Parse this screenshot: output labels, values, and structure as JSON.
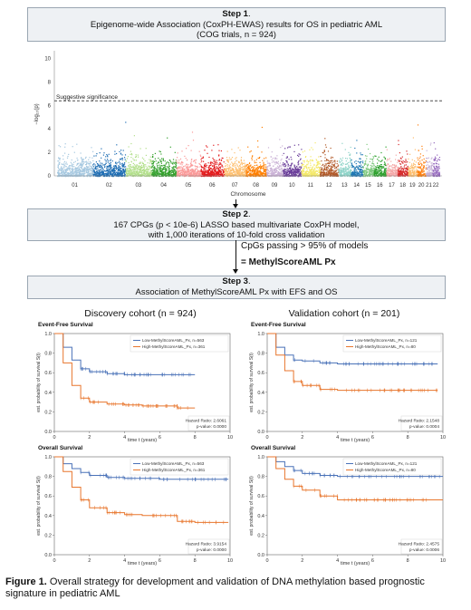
{
  "step1": {
    "label": "Step 1",
    "line1": "Epigenome-wide Association (CoxPH-EWAS) results for OS in pediatric AML",
    "line2": "(COG trials, n = 924)"
  },
  "manhattan": {
    "ylabel": "−log₁₀(p)",
    "xlabel": "Chromosome",
    "threshold_label": "Suggestive significance",
    "y_ticks": [
      "0",
      "2",
      "4",
      "6",
      "8",
      "10"
    ],
    "chromosomes": [
      "01",
      "02",
      "03",
      "04",
      "05",
      "06",
      "07",
      "08",
      "09",
      "10",
      "11",
      "12",
      "13",
      "14",
      "15",
      "16",
      "17",
      "18",
      "19",
      "20",
      "21",
      "22"
    ],
    "colors": [
      "#a6c8e0",
      "#1f6eb4",
      "#b2df8a",
      "#33a02c",
      "#fb9a99",
      "#e31a1c",
      "#fdbf6f",
      "#ff7f00",
      "#cab2d6",
      "#6a3d9a",
      "#f4e96a",
      "#b15928",
      "#8dd3c7",
      "#1f78b4",
      "#7fc97f",
      "#2ca02c",
      "#f4a6a6",
      "#d62728",
      "#fdbf6f",
      "#ff7f0e",
      "#c5b0d5",
      "#9467bd"
    ]
  },
  "step2": {
    "label": "Step 2",
    "line1": "167 CPGs (p < 10e-6) LASSO based multivariate CoxPH model,",
    "line2": "with 1,000 iterations of 10-fold cross validation"
  },
  "cpgs_passing": "CpGs passing > 95% of models",
  "score_name": "= MethylScoreAML Px",
  "step3": {
    "label": "Step 3",
    "line1": "Association of MethylScoreAML Px with EFS and OS"
  },
  "cohorts": {
    "discovery": "Discovery cohort (n = 924)",
    "validation": "Validation cohort (n = 201)"
  },
  "km_common": {
    "ylabel": "est. probability of survival Ŝ(t)",
    "xlabel": "time t (years)",
    "x_ticks": [
      "0",
      "2",
      "4",
      "6",
      "8",
      "10"
    ],
    "y_ticks": [
      "0.0",
      "0.2",
      "0.4",
      "0.6",
      "0.8",
      "1.0"
    ],
    "low_color": "#4a72b8",
    "high_color": "#e8762d"
  },
  "chart_data": [
    {
      "type": "line",
      "title": "Event-Free Survival",
      "xlabel": "time t (years)",
      "ylabel": "est. probability of survival Ŝ(t)",
      "xlim": [
        0,
        10
      ],
      "ylim": [
        0,
        1
      ],
      "x": [
        0,
        0.5,
        1,
        1.5,
        2,
        3,
        4,
        5,
        6,
        7,
        8
      ],
      "series": [
        {
          "name": "Low-MethylScoreAML_Px, n=563",
          "values": [
            1.0,
            0.86,
            0.73,
            0.64,
            0.61,
            0.59,
            0.58,
            0.58,
            0.58,
            0.58,
            0.58
          ]
        },
        {
          "name": "High-MethylScoreAML_Px, n=361",
          "values": [
            1.0,
            0.7,
            0.47,
            0.34,
            0.3,
            0.28,
            0.27,
            0.26,
            0.26,
            0.24,
            0.24
          ]
        }
      ],
      "hazard_ratio": "Hazard Ratio: 2.6061",
      "p_value": "p-value: 0.0000"
    },
    {
      "type": "line",
      "title": "Event-Free Survival",
      "xlabel": "time t (years)",
      "ylabel": "est. probability of survival Ŝ(t)",
      "xlim": [
        0,
        10
      ],
      "ylim": [
        0,
        1
      ],
      "x": [
        0,
        0.5,
        1,
        1.5,
        2,
        3,
        4,
        5,
        6,
        7,
        8,
        9.7
      ],
      "series": [
        {
          "name": "Low-MethylScoreAML_Px, n=121",
          "values": [
            1.0,
            0.86,
            0.78,
            0.73,
            0.72,
            0.7,
            0.69,
            0.69,
            0.69,
            0.69,
            0.69,
            0.69
          ]
        },
        {
          "name": "High-MethylScoreAML_Px, n=80",
          "values": [
            1.0,
            0.78,
            0.62,
            0.51,
            0.47,
            0.43,
            0.42,
            0.42,
            0.42,
            0.42,
            0.42,
            0.42
          ]
        }
      ],
      "hazard_ratio": "Hazard Ratio: 2.1548",
      "p_value": "p-value: 0.0004"
    },
    {
      "type": "line",
      "title": "Overall Survival",
      "xlabel": "time t (years)",
      "ylabel": "est. probability of survival Ŝ(t)",
      "xlim": [
        0,
        10
      ],
      "ylim": [
        0,
        1
      ],
      "x": [
        0,
        0.5,
        1,
        1.5,
        2,
        3,
        4,
        5,
        6,
        7,
        8,
        9.9
      ],
      "series": [
        {
          "name": "Low-MethylScoreAML_Px, n=563",
          "values": [
            1.0,
            0.93,
            0.88,
            0.84,
            0.81,
            0.79,
            0.78,
            0.78,
            0.77,
            0.77,
            0.77,
            0.77
          ]
        },
        {
          "name": "High-MethylScoreAML_Px, n=361",
          "values": [
            1.0,
            0.85,
            0.69,
            0.56,
            0.48,
            0.43,
            0.41,
            0.4,
            0.4,
            0.34,
            0.33,
            0.33
          ]
        }
      ],
      "hazard_ratio": "Hazard Ratio: 3.9154",
      "p_value": "p-value: 0.0000"
    },
    {
      "type": "line",
      "title": "Overall Survival",
      "xlabel": "time t (years)",
      "ylabel": "est. probability of survival Ŝ(t)",
      "xlim": [
        0,
        10
      ],
      "ylim": [
        0,
        1
      ],
      "x": [
        0,
        0.5,
        1,
        1.5,
        2,
        3,
        4,
        5,
        6,
        7,
        8,
        10
      ],
      "series": [
        {
          "name": "Low-MethylScoreAML_Px, n=121",
          "values": [
            1.0,
            0.95,
            0.9,
            0.86,
            0.83,
            0.81,
            0.8,
            0.8,
            0.8,
            0.8,
            0.8,
            0.8
          ]
        },
        {
          "name": "High-MethylScoreAML_Px, n=80",
          "values": [
            1.0,
            0.88,
            0.77,
            0.7,
            0.66,
            0.6,
            0.56,
            0.56,
            0.56,
            0.56,
            0.56,
            0.56
          ]
        }
      ],
      "hazard_ratio": "Hazard Ratio: 2.4575",
      "p_value": "p-value: 0.0006"
    }
  ],
  "caption": {
    "label": "Figure 1.",
    "text": " Overall strategy for development and validation of DNA methylation based prognostic signature in pediatric AML"
  }
}
